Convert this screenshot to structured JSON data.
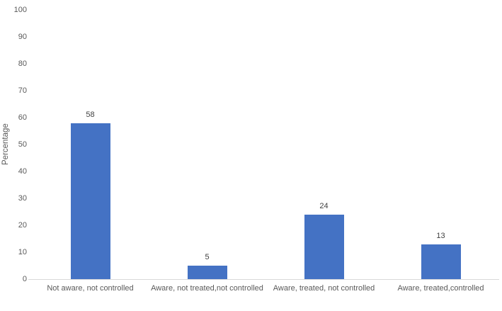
{
  "chart_data": {
    "type": "bar",
    "categories": [
      "Not aware, not controlled",
      "Aware, not treated,not controlled",
      "Aware, treated, not controlled",
      "Aware, treated,controlled"
    ],
    "values": [
      58,
      5,
      24,
      13
    ],
    "data_labels": [
      "58",
      "5",
      "24",
      "13"
    ],
    "title": "",
    "xlabel": "",
    "ylabel": "Percentage",
    "ylim": [
      0,
      100
    ],
    "yticks": [
      0,
      10,
      20,
      30,
      40,
      50,
      60,
      70,
      80,
      90,
      100
    ],
    "grid": false,
    "legend": false,
    "bar_color": "#4472C4",
    "axis_line_color": "#D9D9D9",
    "tick_label_color": "#595959",
    "data_label_color": "#404040"
  }
}
